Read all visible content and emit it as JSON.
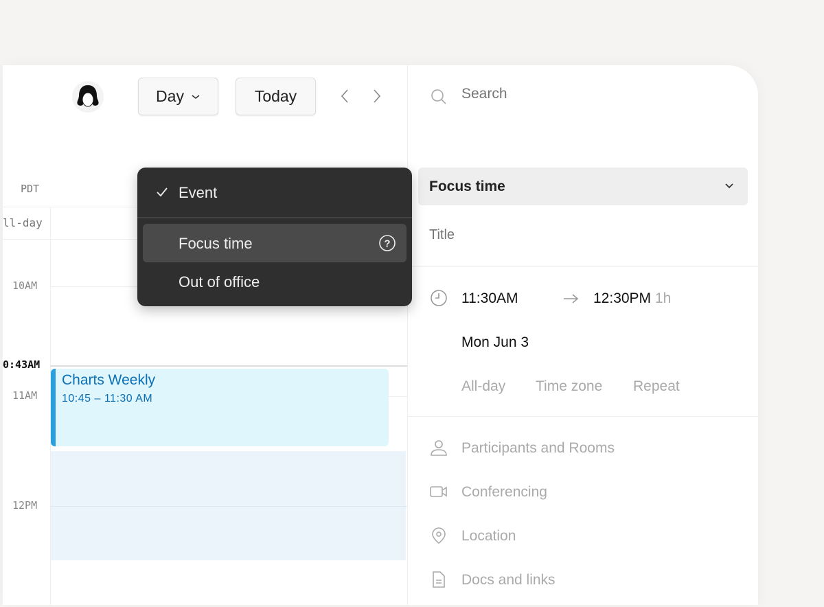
{
  "toolbar": {
    "view_label": "Day",
    "today_label": "Today"
  },
  "calendar": {
    "timezone": "PDT",
    "allday_label": "ll-day",
    "current_time": "0:43AM",
    "hours": [
      "10AM",
      "11AM",
      "12PM"
    ],
    "event": {
      "title": "Charts Weekly",
      "time": "10:45 – 11:30 AM",
      "accent": "#2a9fe0",
      "bg": "#dff6fc",
      "text_color": "#0b6fb5"
    }
  },
  "type_menu": {
    "items": [
      {
        "label": "Event",
        "checked": true
      },
      {
        "label": "Focus time",
        "highlighted": true,
        "help_icon": "question-circle-icon"
      },
      {
        "label": "Out of office"
      }
    ]
  },
  "panel": {
    "search_placeholder": "Search",
    "type_select": "Focus time",
    "title_placeholder": "Title",
    "start": "11:30AM",
    "end": "12:30PM",
    "duration": "1h",
    "date": "Mon Jun 3",
    "options": [
      "All-day",
      "Time zone",
      "Repeat"
    ],
    "fields": [
      {
        "label": "Participants and Rooms",
        "icon": "person-icon"
      },
      {
        "label": "Conferencing",
        "icon": "video-icon"
      },
      {
        "label": "Location",
        "icon": "location-pin-icon"
      },
      {
        "label": "Docs and links",
        "icon": "document-icon"
      }
    ]
  }
}
